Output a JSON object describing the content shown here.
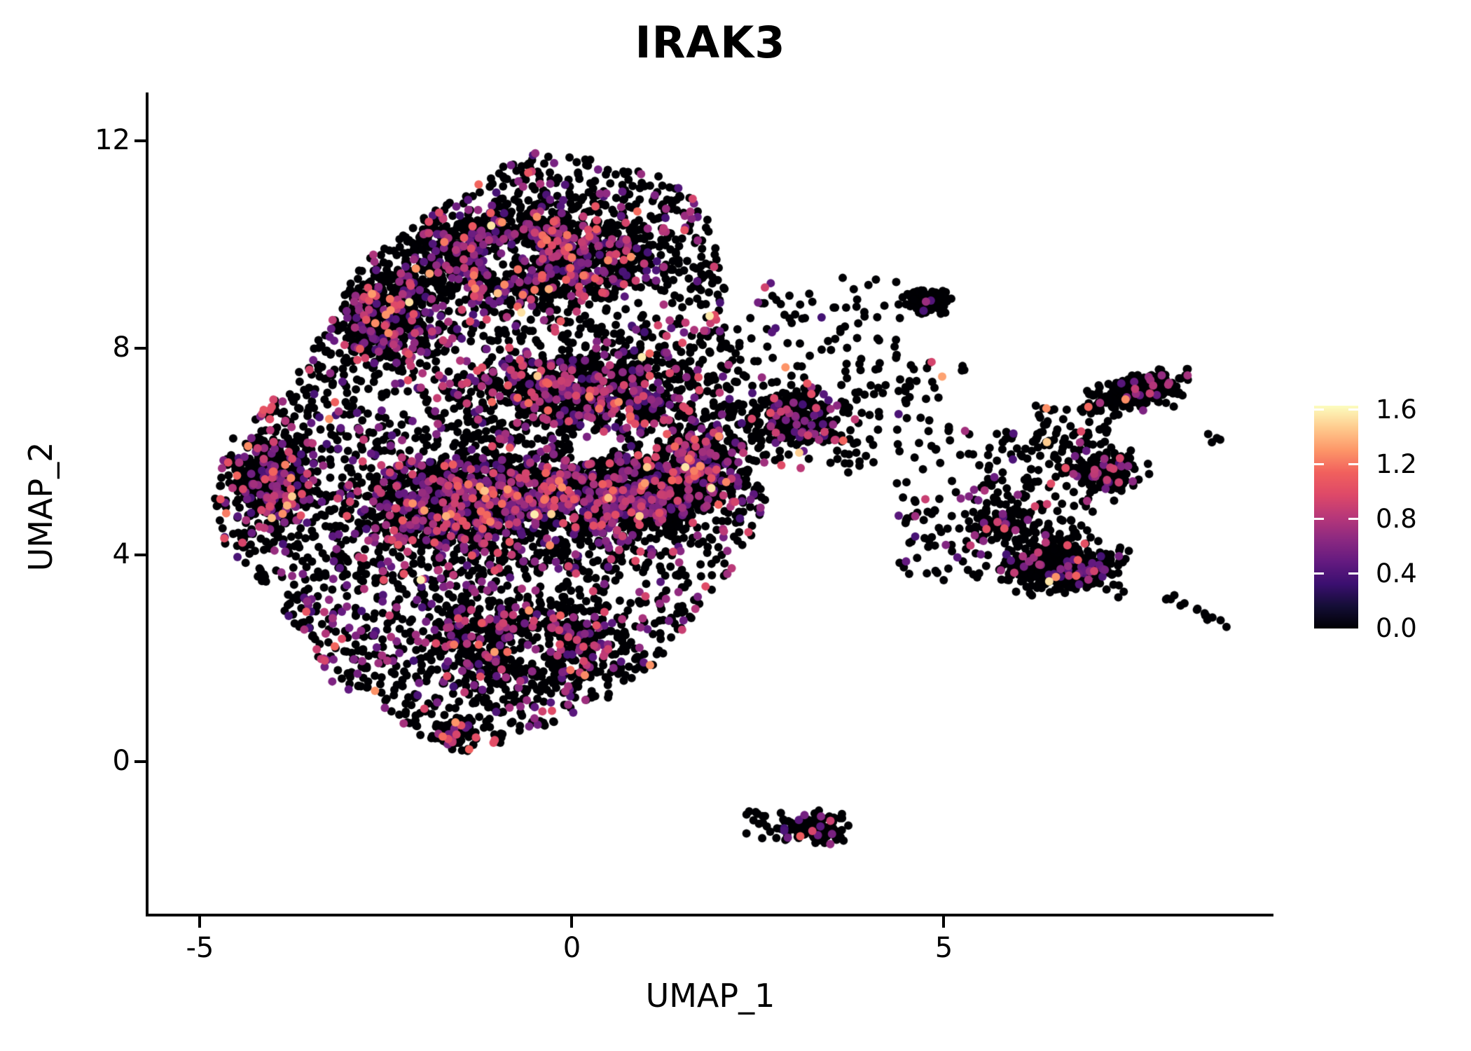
{
  "title": "IRAK3",
  "chart_data": {
    "type": "scatter",
    "title": "IRAK3",
    "xlabel": "UMAP_1",
    "ylabel": "UMAP_2",
    "xlim": [
      -5.71,
      9.43
    ],
    "ylim": [
      -2.97,
      12.94
    ],
    "xticks": [
      {
        "v": -5,
        "label": "-5"
      },
      {
        "v": 0,
        "label": "0"
      },
      {
        "v": 5,
        "label": "5"
      }
    ],
    "yticks": [
      {
        "v": 0,
        "label": "0"
      },
      {
        "v": 4,
        "label": "4"
      },
      {
        "v": 8,
        "label": "8"
      },
      {
        "v": 12,
        "label": "12"
      }
    ],
    "grid": false,
    "point_radius_px": 6,
    "legend_position": "right",
    "colorbar": {
      "min": 0.0,
      "max": 1.63,
      "ticks": [
        {
          "v": 1.6,
          "label": "1.6"
        },
        {
          "v": 1.2,
          "label": "1.2"
        },
        {
          "v": 0.8,
          "label": "0.8"
        },
        {
          "v": 0.4,
          "label": "0.4"
        },
        {
          "v": 0.0,
          "label": "0.0"
        }
      ],
      "colormap": "magma",
      "stops": [
        "#000004",
        "#140e36",
        "#3b0f70",
        "#641a80",
        "#8c2981",
        "#b73779",
        "#de4968",
        "#f1605d",
        "#fd9668",
        "#feca8d",
        "#fcfdbf"
      ]
    },
    "seed": 1337,
    "main_outline": [
      [
        -1.55,
        0.15
      ],
      [
        -2.1,
        0.55
      ],
      [
        -2.75,
        1.25
      ],
      [
        -3.3,
        1.6
      ],
      [
        -3.65,
        2.5
      ],
      [
        -4.1,
        3.3
      ],
      [
        -4.55,
        4.0
      ],
      [
        -4.85,
        4.9
      ],
      [
        -4.75,
        5.7
      ],
      [
        -4.5,
        6.3
      ],
      [
        -4.1,
        6.9
      ],
      [
        -3.75,
        7.5
      ],
      [
        -3.35,
        8.3
      ],
      [
        -3.0,
        9.2
      ],
      [
        -2.55,
        9.95
      ],
      [
        -1.95,
        10.6
      ],
      [
        -1.25,
        11.3
      ],
      [
        -0.55,
        11.75
      ],
      [
        0.25,
        11.72
      ],
      [
        0.95,
        11.45
      ],
      [
        1.5,
        11.1
      ],
      [
        1.82,
        10.5
      ],
      [
        2.0,
        9.8
      ],
      [
        2.12,
        9.0
      ],
      [
        2.05,
        8.4
      ],
      [
        2.3,
        7.7
      ],
      [
        2.5,
        7.0
      ],
      [
        2.55,
        6.3
      ],
      [
        2.45,
        5.6
      ],
      [
        2.6,
        4.95
      ],
      [
        2.4,
        4.3
      ],
      [
        2.15,
        3.7
      ],
      [
        1.8,
        3.05
      ],
      [
        1.45,
        2.45
      ],
      [
        1.1,
        1.8
      ],
      [
        0.6,
        1.3
      ],
      [
        0.05,
        0.95
      ],
      [
        -0.55,
        0.6
      ],
      [
        -1.05,
        0.3
      ]
    ],
    "density_holes": [
      {
        "x": -0.8,
        "y": 9.7,
        "r": 0.4
      },
      {
        "x": 0.9,
        "y": 8.8,
        "r": 0.35
      },
      {
        "x": -0.5,
        "y": 2.2,
        "r": 0.38
      },
      {
        "x": 0.3,
        "y": 6.1,
        "r": 0.28
      },
      {
        "x": -2.3,
        "y": 6.9,
        "r": 0.28
      }
    ],
    "clusters": [
      {
        "name": "main-base",
        "type": "polygon",
        "n": 3300,
        "p_expr": 0.22,
        "clip": true
      },
      {
        "name": "core-left",
        "type": "blob",
        "cx": -1.35,
        "cy": 5.0,
        "rx": 1.9,
        "ry": 1.15,
        "n": 1100,
        "p_expr": 0.27,
        "clip": true
      },
      {
        "name": "core-right",
        "type": "blob",
        "cx": 0.75,
        "cy": 5.15,
        "rx": 1.1,
        "ry": 1.0,
        "n": 720,
        "p_expr": 0.27,
        "clip": true
      },
      {
        "name": "mid-band",
        "type": "blob",
        "cx": 0.1,
        "cy": 7.15,
        "rx": 1.7,
        "ry": 0.85,
        "n": 640,
        "p_expr": 0.24,
        "clip": true
      },
      {
        "name": "upper-lobe",
        "type": "blob",
        "cx": -0.6,
        "cy": 9.8,
        "rx": 1.85,
        "ry": 1.12,
        "n": 1060,
        "p_expr": 0.23,
        "clip": true
      },
      {
        "name": "upper-left-shoulder",
        "type": "blob",
        "cx": -2.5,
        "cy": 8.6,
        "rx": 0.75,
        "ry": 0.95,
        "n": 320,
        "p_expr": 0.27,
        "clip": true
      },
      {
        "name": "left-bulge",
        "type": "blob",
        "cx": -4.0,
        "cy": 5.4,
        "rx": 0.6,
        "ry": 0.95,
        "n": 360,
        "p_expr": 0.28,
        "clip": true
      },
      {
        "name": "right-core-edge",
        "type": "blob",
        "cx": 1.7,
        "cy": 5.7,
        "rx": 0.6,
        "ry": 0.95,
        "n": 400,
        "p_expr": 0.22,
        "clip": true
      },
      {
        "name": "lower-mid",
        "type": "blob",
        "cx": -0.7,
        "cy": 2.3,
        "rx": 1.35,
        "ry": 0.9,
        "n": 430,
        "p_expr": 0.18,
        "clip": true
      },
      {
        "name": "bottom-tip-clump",
        "type": "blob",
        "cx": -1.55,
        "cy": 0.55,
        "rx": 0.3,
        "ry": 0.3,
        "n": 80,
        "p_expr": 0.14,
        "clip": true
      },
      {
        "name": "right-arm",
        "type": "blob",
        "cx": 3.0,
        "cy": 6.6,
        "rx": 0.85,
        "ry": 0.8,
        "n": 310,
        "p_expr": 0.17
      },
      {
        "name": "arm-scatter",
        "type": "box",
        "x0": 3.5,
        "x1": 5.4,
        "y0": 5.6,
        "y1": 7.7,
        "n": 90,
        "p_expr": 0.12
      },
      {
        "name": "upper-strays",
        "type": "box",
        "x0": 2.2,
        "x1": 4.5,
        "y0": 7.6,
        "y1": 9.4,
        "n": 75,
        "p_expr": 0.1
      },
      {
        "name": "cluster-top-small",
        "type": "blob",
        "cx": 4.78,
        "cy": 8.9,
        "rx": 0.33,
        "ry": 0.25,
        "n": 115,
        "p_expr": 0.06
      },
      {
        "name": "bridge-scatter",
        "type": "box",
        "x0": 4.4,
        "x1": 5.6,
        "y0": 3.5,
        "y1": 5.5,
        "n": 70,
        "p_expr": 0.12
      },
      {
        "name": "midright-scatter",
        "type": "box",
        "x0": 5.5,
        "x1": 7.0,
        "y0": 4.4,
        "y1": 6.4,
        "n": 140,
        "p_expr": 0.1
      },
      {
        "name": "midright-cluster",
        "type": "blob",
        "cx": 7.15,
        "cy": 5.55,
        "rx": 0.55,
        "ry": 0.42,
        "n": 155,
        "p_expr": 0.13
      },
      {
        "name": "topright-cluster",
        "type": "blob",
        "cx": 7.6,
        "cy": 7.15,
        "rx": 0.7,
        "ry": 0.33,
        "rot": 18,
        "n": 300,
        "p_expr": 0.08
      },
      {
        "name": "topright-tail",
        "type": "box",
        "x0": 6.2,
        "x1": 7.25,
        "y0": 5.9,
        "y1": 6.9,
        "n": 55,
        "p_expr": 0.09
      },
      {
        "name": "lowerright-cluster",
        "type": "blob",
        "cx": 6.55,
        "cy": 3.8,
        "rx": 0.92,
        "ry": 0.6,
        "rot": -8,
        "n": 430,
        "p_expr": 0.11
      },
      {
        "name": "lowerright-neck",
        "type": "blob",
        "cx": 5.75,
        "cy": 4.6,
        "rx": 0.45,
        "ry": 0.4,
        "n": 85,
        "p_expr": 0.1
      },
      {
        "name": "right-tail",
        "type": "path",
        "points": [
          [
            7.95,
            3.15
          ],
          [
            8.3,
            3.0
          ],
          [
            8.55,
            2.8
          ],
          [
            8.78,
            2.62
          ]
        ],
        "spread": 0.1,
        "n": 15,
        "p_expr": 0.05
      },
      {
        "name": "far-right-dots",
        "type": "box",
        "x0": 8.45,
        "x1": 8.75,
        "y0": 6.0,
        "y1": 6.45,
        "n": 4,
        "p_expr": 0.0
      },
      {
        "name": "bottom-cluster",
        "type": "blob",
        "cx": 3.2,
        "cy": -1.3,
        "rx": 0.52,
        "ry": 0.36,
        "n": 112,
        "p_expr": 0.1
      },
      {
        "name": "bottom-cluster-tail",
        "type": "box",
        "x0": 2.35,
        "x1": 2.95,
        "y0": -1.55,
        "y1": -0.95,
        "n": 16,
        "p_expr": 0.1
      }
    ]
  }
}
